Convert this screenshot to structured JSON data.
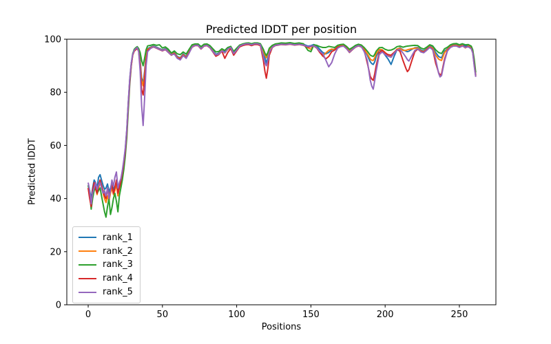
{
  "figure": {
    "background": "#ffffff",
    "spine_color": "#000000"
  },
  "chart_data": {
    "type": "line",
    "title": "Predicted lDDT per position",
    "xlabel": "Positions",
    "ylabel": "Predicted lDDT",
    "xlim": [
      -14.4,
      274.6
    ],
    "ylim": [
      0,
      100
    ],
    "xticks": [
      0,
      50,
      100,
      150,
      200,
      250
    ],
    "yticks": [
      0,
      20,
      40,
      60,
      80,
      100
    ],
    "grid": false,
    "legend_position": "lower left",
    "x": [
      0,
      1,
      2,
      3,
      4,
      5,
      6,
      7,
      8,
      9,
      10,
      11,
      12,
      13,
      14,
      15,
      16,
      17,
      18,
      19,
      20,
      21,
      22,
      23,
      24,
      25,
      26,
      27,
      28,
      29,
      30,
      31,
      32,
      33,
      34,
      35,
      36,
      37,
      38,
      39,
      40,
      42,
      44,
      46,
      48,
      50,
      52,
      54,
      56,
      58,
      60,
      62,
      64,
      66,
      68,
      70,
      72,
      74,
      76,
      78,
      80,
      82,
      84,
      86,
      88,
      90,
      92,
      94,
      96,
      98,
      100,
      102,
      104,
      106,
      108,
      110,
      112,
      114,
      116,
      118,
      119,
      120,
      121,
      122,
      124,
      126,
      128,
      130,
      133,
      136,
      139,
      142,
      145,
      148,
      150,
      152,
      154,
      156,
      158,
      160,
      162,
      164,
      166,
      168,
      170,
      172,
      174,
      176,
      178,
      180,
      182,
      184,
      186,
      188,
      190,
      191,
      192,
      193,
      194,
      196,
      198,
      200,
      202,
      204,
      206,
      208,
      210,
      212,
      214,
      215,
      216,
      218,
      220,
      222,
      224,
      226,
      228,
      230,
      232,
      234,
      236,
      237,
      238,
      240,
      242,
      244,
      246,
      248,
      250,
      252,
      254,
      256,
      258,
      259,
      260,
      261
    ],
    "series": [
      {
        "name": "rank_1",
        "color": "#1f77b4",
        "values": [
          45,
          43,
          40,
          44,
          47,
          46,
          44,
          48,
          49,
          47,
          45,
          43.5,
          44,
          45.5,
          42.5,
          44,
          46,
          43.5,
          44.5,
          46,
          43,
          45.5,
          47,
          50,
          54,
          58.5,
          66,
          76,
          85,
          91,
          94.5,
          96,
          96.5,
          97,
          96,
          92,
          85.5,
          83.5,
          88,
          94,
          96.5,
          97,
          97.5,
          97,
          96.5,
          96,
          96.5,
          95.5,
          94.5,
          95,
          93.5,
          93,
          94.5,
          93.5,
          95.5,
          97.5,
          98,
          98,
          96.8,
          97.8,
          98,
          97.2,
          95.8,
          94.3,
          94.8,
          96,
          95.2,
          96.5,
          97,
          95,
          96.2,
          97.5,
          98,
          98.3,
          98.4,
          98,
          98.4,
          98.4,
          98,
          95,
          93,
          91,
          93,
          95.5,
          97.3,
          98,
          98.2,
          98.4,
          98.3,
          98.5,
          98.2,
          98.4,
          98.1,
          97.4,
          97.6,
          98,
          97.4,
          96.2,
          95,
          94.5,
          95,
          96,
          96.3,
          97.4,
          97.7,
          97.9,
          96.9,
          95.6,
          96.5,
          97.4,
          97.9,
          97.5,
          96.4,
          94,
          91.5,
          90.8,
          90.5,
          91.5,
          93.5,
          96,
          95.5,
          94,
          92.5,
          90.5,
          93.5,
          96,
          96.8,
          96,
          95.5,
          95.3,
          95.5,
          96.2,
          96.8,
          96.9,
          96,
          95.6,
          96.4,
          97.4,
          96.9,
          95,
          93.5,
          93.2,
          93,
          95.5,
          96.4,
          97.4,
          97.9,
          97.9,
          97.4,
          97.9,
          97.4,
          97.6,
          96.9,
          95.5,
          91.5,
          86.5
        ]
      },
      {
        "name": "rank_2",
        "color": "#ff7f0e",
        "values": [
          44,
          41,
          38,
          42,
          45,
          43.5,
          41.5,
          44,
          46,
          44.5,
          42,
          40,
          38.5,
          41,
          39,
          42,
          44,
          41.5,
          43,
          45.5,
          41,
          44,
          46,
          49,
          53,
          58,
          65.5,
          75.5,
          84.5,
          90.5,
          94.2,
          95.8,
          96.3,
          96.8,
          95.8,
          91,
          84.5,
          82.5,
          87,
          93.2,
          96.2,
          96.8,
          97.3,
          96.8,
          96.3,
          95.8,
          96.3,
          95.2,
          94.2,
          94.8,
          93.2,
          92.8,
          94.2,
          93.2,
          95.2,
          97.2,
          97.8,
          97.8,
          96.5,
          97.6,
          97.8,
          97,
          95.5,
          94,
          94.5,
          95.8,
          94.8,
          96.2,
          96.8,
          94.2,
          95.8,
          97.3,
          97.8,
          98.1,
          98.2,
          97.8,
          98.2,
          98.2,
          97.8,
          95.5,
          94,
          93,
          94.5,
          96,
          97.1,
          97.8,
          98,
          98.2,
          98.1,
          98.3,
          98,
          98.2,
          97.9,
          96.8,
          96.2,
          97.6,
          96.8,
          95.2,
          93.6,
          94.8,
          95.8,
          96.3,
          96.1,
          97.2,
          97.5,
          97.7,
          96.7,
          95.4,
          96.3,
          97.2,
          97.7,
          97.3,
          96.2,
          94.5,
          92.5,
          92.1,
          92,
          93,
          94.5,
          96.2,
          96,
          95,
          94,
          93.5,
          94.8,
          96.3,
          96.6,
          95.8,
          95.8,
          96,
          96.2,
          96.4,
          96.6,
          96.7,
          95.6,
          95.3,
          96.2,
          97.2,
          96.6,
          94,
          92.5,
          92.2,
          92,
          95,
          96.2,
          97.2,
          97.7,
          97.7,
          97.2,
          97.7,
          96.7,
          97.4,
          96.7,
          95.2,
          91,
          86.2
        ]
      },
      {
        "name": "rank_3",
        "color": "#2ca02c",
        "values": [
          45,
          42,
          36,
          40,
          43,
          44,
          42,
          43,
          44,
          41,
          38,
          35,
          33,
          37,
          40,
          34,
          36.5,
          40,
          42,
          39,
          35,
          41,
          44,
          47,
          51,
          56,
          63,
          73,
          83,
          90,
          94.5,
          96.2,
          96.8,
          97.2,
          96.5,
          95,
          92,
          90,
          93,
          96,
          97.5,
          97.7,
          98,
          97.7,
          97.9,
          96.7,
          97.1,
          96.2,
          94.8,
          95.6,
          94.5,
          94.2,
          95.2,
          94.4,
          96.2,
          97.9,
          98.2,
          98.2,
          97.2,
          98.1,
          98.2,
          97.6,
          96.4,
          95.2,
          95.4,
          96.4,
          95.8,
          96.9,
          97.3,
          95.4,
          96.6,
          97.8,
          98.2,
          98.5,
          98.6,
          98.3,
          98.6,
          98.6,
          98.3,
          96.2,
          94.8,
          93.8,
          95,
          96.6,
          97.7,
          98.2,
          98.4,
          98.6,
          98.5,
          98.7,
          98.4,
          98.6,
          98.3,
          95.8,
          95.3,
          97.9,
          97.7,
          97.2,
          96.9,
          96.9,
          97.3,
          97.1,
          96.9,
          97.7,
          98,
          98.1,
          97.3,
          96.2,
          96.9,
          97.7,
          98.1,
          97.8,
          96.8,
          95.5,
          94,
          93.7,
          93.5,
          94.3,
          95.5,
          96.8,
          96.9,
          96.2,
          95.8,
          95.9,
          96.4,
          97.2,
          97.4,
          97,
          97.3,
          97.4,
          97.5,
          97.6,
          97.7,
          97.6,
          96.7,
          96.3,
          97,
          97.9,
          97.5,
          96,
          95,
          94.8,
          94.6,
          96.4,
          97,
          97.9,
          98.3,
          98.4,
          97.9,
          98.3,
          97.9,
          98,
          97.4,
          96,
          92.5,
          87.5
        ]
      },
      {
        "name": "rank_4",
        "color": "#d62728",
        "values": [
          44,
          40,
          37,
          43,
          46,
          44,
          42,
          45,
          47,
          45,
          43,
          41,
          40,
          44,
          41,
          43,
          45,
          42,
          44,
          47,
          42,
          44,
          46.5,
          49.5,
          53.5,
          58,
          65,
          75,
          84,
          90.2,
          94,
          95.5,
          96,
          96.5,
          95.5,
          90,
          81,
          79,
          85,
          92,
          95.8,
          96.6,
          97.1,
          96.6,
          96.1,
          95.6,
          96.1,
          95,
          94,
          94.6,
          93,
          92.6,
          94,
          93,
          95,
          97,
          97.6,
          97.6,
          96.3,
          97.4,
          97.6,
          96.8,
          95.2,
          93.6,
          94.2,
          95.5,
          92.8,
          95,
          96.5,
          94,
          95.6,
          97.1,
          97.6,
          97.9,
          98,
          97.6,
          98,
          98,
          97.6,
          92,
          88,
          85.3,
          89,
          94,
          96.9,
          97.6,
          97.8,
          98,
          97.9,
          98.1,
          97.8,
          98,
          97.7,
          97,
          97.2,
          97.4,
          96.6,
          95,
          93.8,
          92.6,
          93.5,
          95.3,
          95.9,
          97,
          97.3,
          97.5,
          96.5,
          95,
          96.1,
          97,
          97.5,
          97.1,
          95.6,
          91,
          86,
          85,
          84.5,
          87,
          90,
          95,
          95.8,
          94.8,
          94.2,
          94,
          95,
          96.1,
          95.5,
          92,
          89,
          87.8,
          88.5,
          92,
          95.3,
          96.3,
          95.4,
          95.1,
          96,
          97,
          96.2,
          91,
          87.5,
          86.5,
          87,
          92.5,
          95.8,
          97,
          97.5,
          97.5,
          97,
          97.5,
          97,
          97.2,
          96.5,
          95,
          90.5,
          86
        ]
      },
      {
        "name": "rank_5",
        "color": "#9467bd",
        "values": [
          46,
          43,
          38,
          42,
          44,
          46,
          43.5,
          45,
          46,
          44,
          42,
          43,
          41,
          44,
          40,
          43,
          47,
          44.5,
          48,
          50,
          44,
          46,
          47.5,
          50.5,
          54.5,
          59,
          66,
          76,
          85,
          91,
          94.3,
          95.8,
          96.4,
          96.9,
          95.5,
          88,
          75,
          67.5,
          78,
          90,
          95.3,
          96.5,
          97.2,
          96.7,
          96.2,
          95.7,
          96.2,
          95,
          94.1,
          94.4,
          92.8,
          92.2,
          93.8,
          92.8,
          94.8,
          97.1,
          97.7,
          97.7,
          96.4,
          97.5,
          97.7,
          96.9,
          95.3,
          94.1,
          94.4,
          95.6,
          94.9,
          96.3,
          96.9,
          94.6,
          95.9,
          97.4,
          97.9,
          98.2,
          98.3,
          97.9,
          98.3,
          98.3,
          97.9,
          93.5,
          91,
          90,
          92,
          95,
          97,
          97.7,
          97.9,
          98.1,
          98,
          98.2,
          97.9,
          98.1,
          97.8,
          97.2,
          97.4,
          97.5,
          96.7,
          95.4,
          94.6,
          92.2,
          89.6,
          91.2,
          94.4,
          96.6,
          97.2,
          97.4,
          96.4,
          95.1,
          96.2,
          97.1,
          97.6,
          97.2,
          95.2,
          92,
          84.5,
          82.3,
          81.2,
          84.5,
          88,
          94.2,
          95.2,
          94.2,
          93.6,
          93.2,
          94.6,
          95.9,
          96.2,
          94.8,
          93.2,
          92.3,
          91.8,
          93.8,
          95.8,
          96.4,
          95.2,
          94.9,
          95.8,
          96.9,
          96,
          92.5,
          87.2,
          85.8,
          86.3,
          91.8,
          95.6,
          96.9,
          97.4,
          97.4,
          96.9,
          97.4,
          96.9,
          97.1,
          96.4,
          94.8,
          90,
          85.8
        ]
      }
    ]
  }
}
